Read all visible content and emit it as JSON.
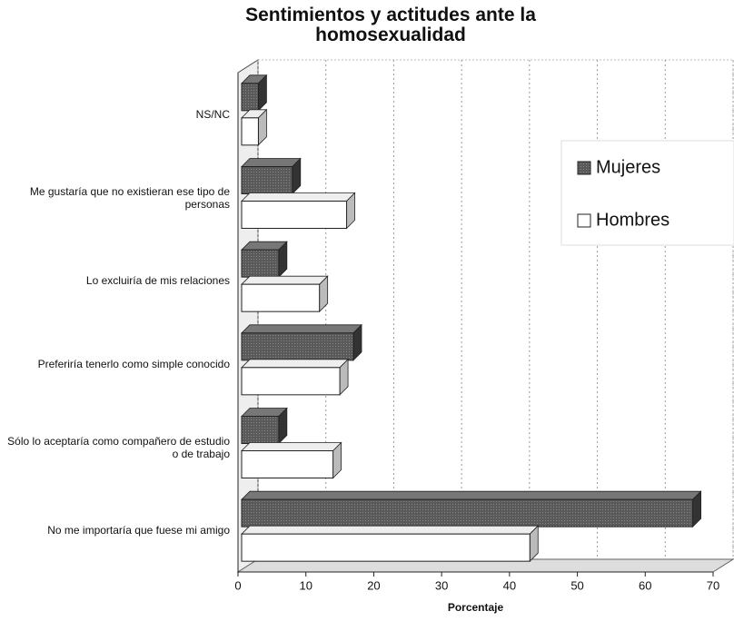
{
  "chart_data": {
    "type": "bar",
    "orientation": "horizontal",
    "title": "Sentimientos y actitudes ante la homosexualidad",
    "categories": [
      "NS/NC",
      "Me gustaría que no existieran ese tipo de personas",
      "Lo excluiría de mis relaciones",
      "Preferiría tenerlo como simple conocido",
      "Sólo lo aceptaría como compañero de estudio o de trabajo",
      "No me importaría que fuese mi amigo"
    ],
    "series": [
      {
        "name": "Mujeres",
        "color": "#5a5a5a",
        "values": [
          3,
          8,
          6,
          17,
          6,
          67
        ]
      },
      {
        "name": "Hombres",
        "color": "#ffffff",
        "values": [
          3,
          16,
          12,
          15,
          14,
          43
        ]
      }
    ],
    "xlim": [
      0,
      70
    ],
    "xticks": [
      0,
      10,
      20,
      30,
      40,
      50,
      60,
      70
    ],
    "xlabel": "Porcentaje",
    "grid": true,
    "legend": "upper right"
  }
}
